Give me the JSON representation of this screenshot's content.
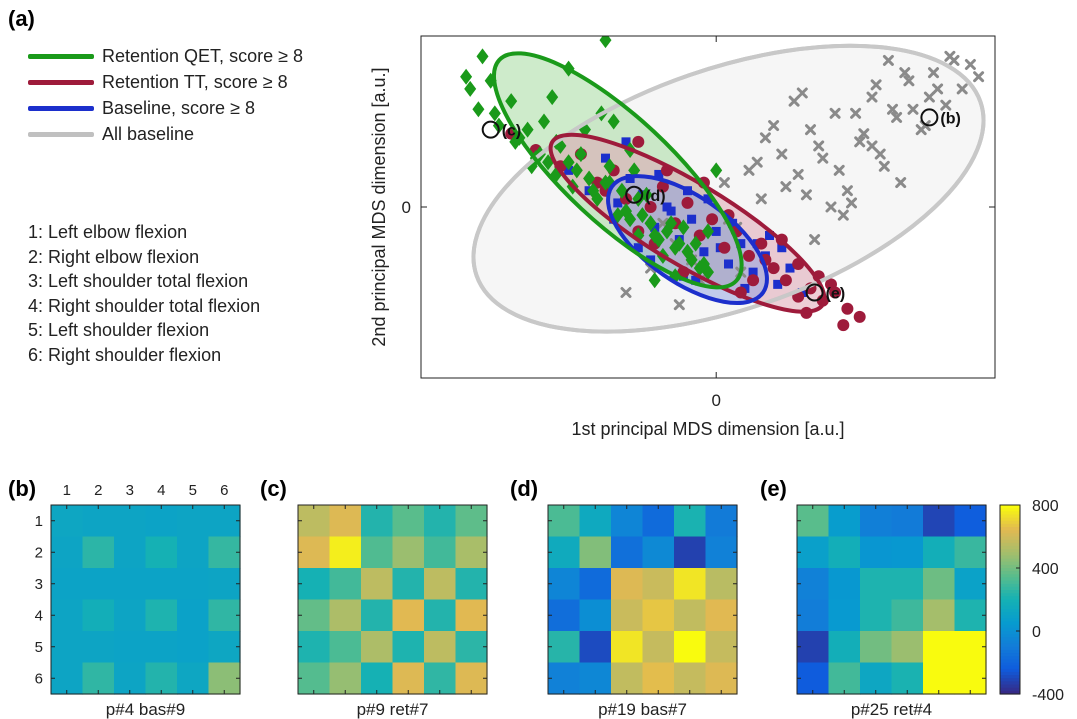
{
  "figure": {
    "panel_a_label": "(a)",
    "panel_b_label": "(b)",
    "panel_c_label": "(c)",
    "panel_d_label": "(d)",
    "panel_e_label": "(e)"
  },
  "legend": {
    "entries": [
      {
        "label": "Retention QET, score ≥ 8",
        "color": "#1a9a1a"
      },
      {
        "label": "Retention TT, score ≥ 8",
        "color": "#9e1b3b"
      },
      {
        "label": "Baseline, score ≥ 8",
        "color": "#1c2fcc"
      },
      {
        "label": "All baseline",
        "color": "#c0c0c0"
      }
    ]
  },
  "joints": [
    "1: Left elbow flexion",
    "2: Right elbow flexion",
    "3: Left shoulder total flexion",
    "4: Right shoulder total flexion",
    "5: Left shoulder flexion",
    "6: Right shoulder flexion"
  ],
  "chart_data": [
    {
      "type": "scatter",
      "xlabel": "1st principal MDS dimension [a.u.]",
      "ylabel": "2nd principal MDS dimension [a.u.]",
      "xlim": [
        -7.2,
        6.8
      ],
      "ylim": [
        -4.2,
        4.2
      ],
      "xticks": [
        0
      ],
      "yticks": [
        0
      ],
      "grid": false,
      "colors": {
        "qet": "#1a9a1a",
        "qet_fill": "#a6dba0",
        "tt": "#9e1b3b",
        "tt_fill": "#dfa6b5",
        "baseline": "#1c2fcc",
        "baseline_fill": "#8c9ee0",
        "all": "#c8c8c8",
        "all_fill": "#eeeeee",
        "grey_marker": "#8a8a8a"
      },
      "ellipses": [
        {
          "series": "All baseline",
          "cx": 0.3,
          "cy": 0.45,
          "rx": 6.5,
          "ry": 2.95,
          "angle_deg": 19
        },
        {
          "series": "Retention QET",
          "cx": -2.4,
          "cy": 0.9,
          "rx": 3.95,
          "ry": 1.3,
          "angle_deg": -43
        },
        {
          "series": "Retention TT",
          "cx": -0.7,
          "cy": -0.4,
          "rx": 3.85,
          "ry": 1.0,
          "angle_deg": -31
        },
        {
          "series": "Baseline",
          "cx": -0.7,
          "cy": -0.8,
          "rx": 2.25,
          "ry": 1.05,
          "angle_deg": -35
        }
      ],
      "series": [
        {
          "name": "Retention QET",
          "marker": "diamond",
          "color": "#1a9a1a",
          "x": [
            -6.1,
            -5.7,
            -6.0,
            -5.4,
            -5.0,
            -4.9,
            -4.6,
            -4.3,
            -4.2,
            -4.1,
            -3.9,
            -3.8,
            -3.6,
            -3.5,
            -3.3,
            -3.1,
            -2.9,
            -2.7,
            -2.5,
            -2.3,
            -2.1,
            -2.0,
            -1.8,
            -1.6,
            -1.4,
            -1.2,
            -1.0,
            -0.8,
            -0.6,
            -0.4,
            -0.2,
            -5.8,
            -5.3,
            -4.8,
            -4.4,
            -3.9,
            -3.4,
            -3.0,
            -2.6,
            -2.2,
            -1.9,
            -1.5,
            -1.1,
            -0.7,
            -0.3,
            -4.0,
            -3.2,
            -2.8,
            -2.4,
            -1.7,
            -1.3,
            -0.9,
            -2.6,
            -1.9,
            -1.5,
            -0.5,
            -3.6,
            -2.7,
            -4.5,
            -5.5,
            0.0,
            -2.1,
            -1.6,
            -1.0,
            -0.2
          ],
          "y": [
            3.2,
            3.7,
            2.9,
            2.3,
            2.6,
            1.6,
            1.9,
            1.3,
            2.1,
            1.1,
            0.8,
            1.5,
            1.1,
            0.5,
            1.3,
            0.7,
            0.2,
            0.6,
            2.1,
            0.4,
            -0.3,
            0.9,
            -0.2,
            -0.4,
            -0.8,
            -0.6,
            -1.0,
            -0.5,
            -1.3,
            -1.5,
            -1.6,
            2.4,
            2.0,
            1.7,
            1.2,
            1.6,
            0.9,
            0.4,
            1.0,
            -0.1,
            0.2,
            -0.7,
            -0.4,
            -1.1,
            -1.4,
            2.7,
            1.9,
            2.3,
            -0.2,
            0.3,
            -1.2,
            -0.9,
            0.6,
            -0.7,
            -1.8,
            -0.9,
            3.4,
            4.1,
            1.0,
            3.1,
            0.9,
            1.4,
            -0.4,
            -1.7,
            -0.6
          ]
        },
        {
          "name": "Retention TT",
          "marker": "circle",
          "color": "#9e1b3b",
          "x": [
            -5.0,
            -4.4,
            -3.8,
            -3.3,
            -2.9,
            -2.5,
            -2.2,
            -1.9,
            -1.6,
            -1.3,
            -1.0,
            -0.7,
            -0.4,
            -0.1,
            0.2,
            0.5,
            0.8,
            1.1,
            1.4,
            1.7,
            2.0,
            2.3,
            2.6,
            2.9,
            3.2,
            3.5,
            -1.5,
            -0.8,
            0.3,
            0.9,
            1.6,
            2.2,
            2.8,
            -2.7,
            -1.9,
            -0.3,
            1.2,
            2.5,
            3.1,
            2.0,
            0.6,
            -1.2
          ],
          "y": [
            1.8,
            1.4,
            1.0,
            1.3,
            0.6,
            0.9,
            0.2,
            1.6,
            0.0,
            0.5,
            -0.4,
            0.1,
            -0.7,
            -0.3,
            -1.0,
            -0.6,
            -1.2,
            -0.9,
            -1.5,
            -1.8,
            -1.4,
            -2.0,
            -2.3,
            -2.1,
            -2.5,
            -2.7,
            -0.9,
            -1.6,
            -0.2,
            -1.8,
            -0.8,
            -2.6,
            -1.9,
            0.4,
            -0.6,
            0.6,
            -1.3,
            -1.7,
            -2.9,
            -2.2,
            -2.1,
            0.9
          ]
        },
        {
          "name": "Baseline",
          "marker": "square",
          "color": "#1c2fcc",
          "x": [
            -3.6,
            -3.1,
            -2.7,
            -2.4,
            -2.1,
            -1.8,
            -1.5,
            -1.2,
            -0.9,
            -0.6,
            -0.3,
            0.0,
            0.3,
            0.6,
            0.9,
            1.2,
            1.5,
            1.8,
            2.1,
            -2.5,
            -1.9,
            -1.4,
            -0.8,
            -0.2,
            0.4,
            1.0,
            1.6,
            -1.6,
            -0.5,
            0.7,
            -1.1,
            1.3,
            -2.2,
            0.1,
            -0.7
          ],
          "y": [
            0.9,
            0.4,
            1.2,
            0.1,
            0.7,
            0.3,
            -0.5,
            0.0,
            -0.8,
            -0.3,
            -1.1,
            -0.6,
            -1.4,
            -0.9,
            -1.6,
            -1.2,
            -1.9,
            -1.5,
            -2.1,
            -0.3,
            -1.0,
            0.8,
            -1.7,
            0.2,
            -0.4,
            -0.9,
            -1.0,
            -1.3,
            -1.8,
            -2.0,
            -0.1,
            -0.7,
            1.6,
            -1.0,
            0.4
          ]
        },
        {
          "name": "All baseline",
          "marker": "x",
          "color": "#8a8a8a",
          "x": [
            -2.2,
            -1.6,
            -1.0,
            -0.4,
            0.2,
            0.8,
            1.2,
            1.6,
            2.0,
            2.3,
            2.6,
            2.9,
            3.2,
            3.5,
            3.8,
            4.1,
            4.4,
            4.7,
            5.0,
            5.3,
            5.6,
            5.8,
            6.0,
            6.2,
            6.4,
            1.4,
            1.9,
            2.5,
            3.0,
            3.6,
            4.2,
            4.8,
            5.4,
            2.2,
            2.8,
            3.4,
            4.0,
            4.6,
            5.2,
            0.5,
            1.0,
            1.7,
            2.4,
            3.1,
            3.8,
            4.5,
            5.1,
            5.7,
            -1.3,
            -0.6,
            0.3,
            1.1,
            -0.9,
            0.6,
            3.3,
            3.9,
            4.3,
            2.1
          ],
          "y": [
            -2.1,
            -1.5,
            -0.9,
            -1.8,
            0.6,
            0.9,
            1.7,
            1.3,
            0.8,
            1.9,
            1.2,
            2.3,
            0.4,
            1.6,
            2.7,
            1.0,
            2.2,
            3.1,
            1.9,
            3.3,
            2.5,
            3.6,
            2.9,
            3.5,
            3.2,
            2.0,
            2.6,
            1.5,
            0.9,
            1.8,
            3.6,
            2.4,
            2.9,
            0.3,
            0.0,
            2.3,
            1.3,
            3.3,
            2.7,
            -0.5,
            1.1,
            0.5,
            -0.8,
            -0.2,
            1.5,
            0.6,
            2.0,
            3.7,
            -0.4,
            -1.3,
            -0.3,
            0.2,
            -2.4,
            -1.6,
            0.1,
            3.0,
            2.4,
            2.8
          ]
        }
      ],
      "highlighted": [
        {
          "label": "(b)",
          "x": 5.2,
          "y": 2.2
        },
        {
          "label": "(c)",
          "x": -5.5,
          "y": 1.9
        },
        {
          "label": "(d)",
          "x": -2.0,
          "y": 0.3
        },
        {
          "label": "(e)",
          "x": 2.4,
          "y": -2.1
        }
      ]
    },
    {
      "type": "heatmap",
      "panel": "(b)",
      "xlabel": "p#4 bas#9",
      "tick_labels": [
        "1",
        "2",
        "3",
        "4",
        "5",
        "6"
      ],
      "clim": [
        -400,
        800
      ],
      "values": [
        [
          120,
          110,
          110,
          100,
          110,
          110
        ],
        [
          110,
          250,
          110,
          200,
          110,
          270
        ],
        [
          100,
          100,
          100,
          100,
          100,
          110
        ],
        [
          110,
          180,
          110,
          220,
          90,
          260
        ],
        [
          110,
          110,
          100,
          100,
          90,
          120
        ],
        [
          110,
          260,
          110,
          230,
          120,
          450
        ]
      ]
    },
    {
      "type": "heatmap",
      "panel": "(c)",
      "xlabel": "p#9 ret#7",
      "values": [
        [
          560,
          640,
          230,
          350,
          230,
          360
        ],
        [
          640,
          770,
          330,
          480,
          300,
          510
        ],
        [
          200,
          300,
          560,
          230,
          560,
          230
        ],
        [
          370,
          520,
          230,
          650,
          230,
          650
        ],
        [
          220,
          320,
          520,
          220,
          560,
          250
        ],
        [
          340,
          470,
          200,
          640,
          260,
          640
        ]
      ]
    },
    {
      "type": "heatmap",
      "panel": "(d)",
      "xlabel": "p#19 bas#7",
      "values": [
        [
          320,
          140,
          -60,
          -180,
          210,
          -110
        ],
        [
          150,
          430,
          -160,
          -40,
          -330,
          -80
        ],
        [
          -60,
          -180,
          640,
          590,
          750,
          550
        ],
        [
          -170,
          -20,
          590,
          680,
          570,
          650
        ],
        [
          240,
          -300,
          750,
          580,
          800,
          580
        ],
        [
          -80,
          -50,
          570,
          660,
          580,
          640
        ]
      ]
    },
    {
      "type": "heatmap",
      "panel": "(e)",
      "xlabel": "p#25 ret#4",
      "values": [
        [
          350,
          60,
          -90,
          -110,
          -320,
          -240
        ],
        [
          80,
          180,
          20,
          30,
          180,
          280
        ],
        [
          -80,
          30,
          220,
          220,
          390,
          90
        ],
        [
          -100,
          40,
          220,
          290,
          500,
          220
        ],
        [
          -330,
          180,
          400,
          480,
          800,
          800
        ],
        [
          -250,
          300,
          120,
          210,
          800,
          800
        ]
      ]
    },
    {
      "type": "colorbar",
      "clim": [
        -400,
        800
      ],
      "tick_labels": [
        "800",
        "400",
        "0",
        "-400"
      ],
      "tick_values": [
        800,
        400,
        0,
        -400
      ]
    }
  ]
}
